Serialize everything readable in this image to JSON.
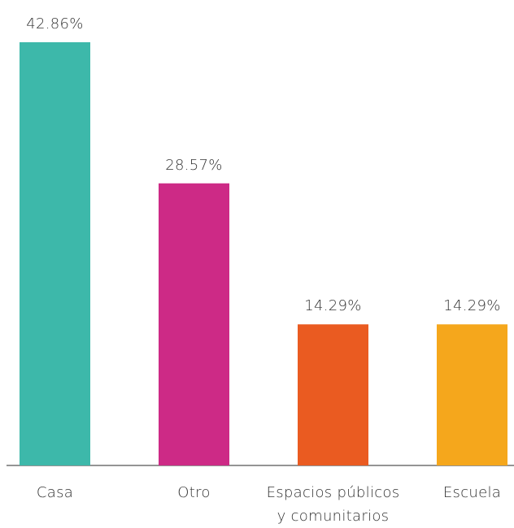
{
  "chart_data": {
    "type": "bar",
    "categories": [
      "Casa",
      "Otro",
      "Espacios públicos\ny comunitarios",
      "Escuela"
    ],
    "values": [
      42.86,
      28.57,
      14.29,
      14.29
    ],
    "value_labels": [
      "42.86%",
      "28.57%",
      "14.29%",
      "14.29%"
    ],
    "colors": [
      "#3db8aa",
      "#cd2a86",
      "#ea5b21",
      "#f5a71c"
    ]
  }
}
